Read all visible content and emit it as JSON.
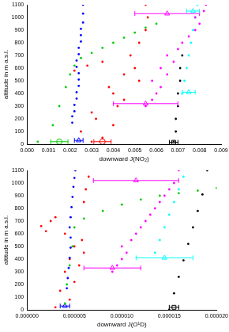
{
  "chart_data": [
    {
      "type": "scatter",
      "x_label": "downward J(NO₂)",
      "y_label": "altitude in m a.s.l.",
      "xlim": [
        0,
        0.009
      ],
      "ylim": [
        0,
        1100
      ],
      "grid": false,
      "xticks": [
        {
          "value": 0,
          "label": "0.000"
        },
        {
          "value": 0.001,
          "label": "0.001"
        },
        {
          "value": 0.002,
          "label": "0.002"
        },
        {
          "value": 0.003,
          "label": "0.003"
        },
        {
          "value": 0.004,
          "label": "0.004"
        },
        {
          "value": 0.005,
          "label": "0.005"
        },
        {
          "value": 0.006,
          "label": "0.006"
        },
        {
          "value": 0.007,
          "label": "0.007"
        },
        {
          "value": 0.008,
          "label": "0.008"
        },
        {
          "value": 0.009,
          "label": "0.009"
        }
      ],
      "yticks": [
        0,
        100,
        200,
        300,
        400,
        500,
        600,
        700,
        800,
        900,
        1000,
        1100
      ],
      "series": [
        {
          "color": "#0000ff",
          "marker": "dot",
          "x": [
            0.0021,
            0.0021,
            0.0022,
            0.0022,
            0.0023,
            0.0023,
            0.0024,
            0.0024,
            0.0024,
            0.0023,
            0.0023,
            0.0024,
            0.0024,
            0.0025,
            0.0025,
            0.0025,
            0.0026,
            0.0026,
            0.0026
          ],
          "y": [
            170,
            220,
            260,
            310,
            360,
            410,
            460,
            510,
            560,
            610,
            660,
            710,
            760,
            810,
            860,
            910,
            960,
            1030,
            1100
          ]
        },
        {
          "color": "#ff0000",
          "marker": "dot",
          "x": [
            0.003,
            0.0035,
            0.0025,
            0.004,
            0.0032,
            0.003,
            0.0042,
            0.0045,
            0.004,
            0.0038,
            0.0052,
            0.0045,
            0.005,
            0.0022,
            0.0028,
            0.0035,
            0.0048,
            0.0052,
            0.0055,
            0.0056,
            0.0055
          ],
          "y": [
            20,
            50,
            100,
            150,
            200,
            250,
            300,
            350,
            400,
            450,
            500,
            550,
            600,
            580,
            620,
            650,
            700,
            800,
            900,
            1000,
            1100
          ]
        },
        {
          "color": "#00cc00",
          "marker": "dot",
          "x": [
            0.0005,
            0.0012,
            0.0015,
            0.0018,
            0.002,
            0.0022,
            0.0025,
            0.003,
            0.0035,
            0.004,
            0.0045,
            0.005,
            0.0055,
            0.006
          ],
          "y": [
            20,
            150,
            300,
            450,
            550,
            620,
            680,
            720,
            760,
            800,
            840,
            880,
            920,
            950
          ]
        },
        {
          "color": "#ff00ff",
          "marker": "dot",
          "x": [
            0.0055,
            0.0058,
            0.006,
            0.0062,
            0.0058,
            0.0065,
            0.0062,
            0.0068,
            0.0065,
            0.007,
            0.0072,
            0.0075,
            0.0078,
            0.008,
            0.0078,
            0.0082,
            0.0083
          ],
          "y": [
            300,
            350,
            400,
            450,
            500,
            550,
            600,
            650,
            700,
            750,
            800,
            850,
            900,
            950,
            1000,
            1050,
            1100
          ]
        },
        {
          "color": "#00ffff",
          "marker": "dot",
          "x": [
            0.0072,
            0.0073,
            0.0074,
            0.0075,
            0.0076,
            0.0077,
            0.0078,
            0.0079
          ],
          "y": [
            400,
            500,
            600,
            700,
            800,
            900,
            1000,
            1100
          ]
        },
        {
          "color": "#000000",
          "marker": "dot",
          "x": [
            0.0068,
            0.0069,
            0.0069,
            0.007,
            0.007,
            0.0071,
            0.0071,
            0.0072
          ],
          "y": [
            20,
            100,
            200,
            300,
            400,
            500,
            600,
            700
          ]
        },
        {
          "color": "#ff00ff",
          "marker": "open triangle",
          "x": [
            0.0065,
            0.0055
          ],
          "y": [
            1030,
            320
          ],
          "xerr": [
            0.0015,
            0.0015
          ]
        },
        {
          "color": "#00ffff",
          "marker": "open triangle",
          "x": [
            0.0075,
            0.0077
          ],
          "y": [
            410,
            1050
          ],
          "xerr": [
            0.0003,
            0.0003
          ]
        },
        {
          "color": "#0000ff",
          "marker": "open triangle",
          "x": [
            0.0024
          ],
          "y": [
            30
          ],
          "xerr": [
            0.0002
          ]
        },
        {
          "color": "#ff0000",
          "marker": "open circle",
          "x": [
            0.0035
          ],
          "y": [
            20
          ],
          "xerr": [
            0.0004
          ]
        },
        {
          "color": "#00cc00",
          "marker": "open circle",
          "x": [
            0.0015
          ],
          "y": [
            20
          ],
          "xerr": [
            0.0004
          ]
        },
        {
          "color": "#000000",
          "marker": "open rect",
          "x": [
            0.0068
          ],
          "y": [
            15
          ],
          "xerr": [
            0.0002
          ]
        }
      ]
    },
    {
      "type": "scatter",
      "x_label": "downward J(O¹D)",
      "y_label": "altitude in m a.s.l.",
      "xlim": [
        0,
        2e-05
      ],
      "ylim": [
        0,
        1100
      ],
      "grid": false,
      "xticks": [
        {
          "value": 0,
          "label": "0.000000"
        },
        {
          "value": 5e-06,
          "label": "0.000005"
        },
        {
          "value": 1e-05,
          "label": "0.000010"
        },
        {
          "value": 1.5e-05,
          "label": "0.000015"
        },
        {
          "value": 2e-05,
          "label": "0.000020"
        }
      ],
      "yticks": [
        0,
        100,
        200,
        300,
        400,
        500,
        600,
        700,
        800,
        900,
        1000,
        1100
      ],
      "series": [
        {
          "color": "#0000ff",
          "marker": "dot",
          "x": [
            4.2e-06,
            4.3e-06,
            4.4e-06,
            4.5e-06,
            4.6e-06,
            4.6e-06,
            4.5e-06,
            4.6e-06,
            4.7e-06,
            4.8e-06,
            4.9e-06,
            5e-06,
            5.1e-06
          ],
          "y": [
            170,
            250,
            330,
            410,
            490,
            570,
            650,
            730,
            810,
            890,
            970,
            1040,
            1100
          ]
        },
        {
          "color": "#ff0000",
          "marker": "dot",
          "x": [
            3e-06,
            4.5e-06,
            3.5e-06,
            5e-06,
            4e-06,
            5.5e-06,
            4.5e-06,
            6e-06,
            5e-06,
            5.8e-06,
            4e-06,
            2e-06,
            1.5e-06,
            2.5e-06,
            3e-06,
            6e-06,
            6.2e-06,
            6.5e-06
          ],
          "y": [
            20,
            80,
            150,
            220,
            300,
            350,
            400,
            450,
            500,
            550,
            600,
            620,
            660,
            700,
            730,
            850,
            950,
            1050
          ]
        },
        {
          "color": "#00cc00",
          "marker": "dot",
          "x": [
            4e-06,
            4.2e-06,
            4.5e-06,
            4.8e-06,
            5e-06,
            6e-06,
            8e-06,
            1e-05,
            1.2e-05,
            1.4e-05,
            1.6e-05,
            1.8e-05,
            2e-05
          ],
          "y": [
            50,
            200,
            350,
            500,
            650,
            720,
            780,
            830,
            870,
            900,
            920,
            940,
            960
          ]
        },
        {
          "color": "#ff00ff",
          "marker": "dot",
          "x": [
            9e-06,
            9.5e-06,
            1e-05,
            1.05e-05,
            1e-05,
            1.1e-05,
            1.15e-05,
            1.2e-05,
            1.25e-05,
            1.3e-05,
            1.35e-05,
            1.4e-05,
            1.45e-05,
            1.5e-05,
            1.55e-05,
            1.6e-05
          ],
          "y": [
            300,
            350,
            400,
            450,
            500,
            550,
            600,
            650,
            700,
            750,
            800,
            850,
            900,
            950,
            1000,
            1100
          ]
        },
        {
          "color": "#00ffff",
          "marker": "dot",
          "x": [
            1.35e-05,
            1.4e-05,
            1.45e-05,
            1.5e-05,
            1.55e-05,
            1.6e-05,
            1.65e-05
          ],
          "y": [
            450,
            550,
            650,
            750,
            850,
            950,
            1050
          ]
        },
        {
          "color": "#000000",
          "marker": "dot",
          "x": [
            1.5e-05,
            1.55e-05,
            1.6e-05,
            1.65e-05,
            1.7e-05,
            1.75e-05,
            1.8e-05,
            1.85e-05,
            1.9e-05
          ],
          "y": [
            0,
            130,
            260,
            390,
            520,
            650,
            780,
            910,
            1100
          ]
        },
        {
          "color": "#ff00ff",
          "marker": "open triangle",
          "x": [
            1.15e-05,
            9e-06
          ],
          "y": [
            1020,
            330
          ],
          "xerr": [
            4.5e-06,
            3e-06
          ]
        },
        {
          "color": "#00ffff",
          "marker": "open triangle",
          "x": [
            1.45e-05
          ],
          "y": [
            410
          ],
          "xerr": [
            3e-06
          ]
        },
        {
          "color": "#0000ff",
          "marker": "open triangle",
          "x": [
            4e-06
          ],
          "y": [
            30
          ],
          "xerr": [
            5e-07
          ]
        },
        {
          "color": "#000000",
          "marker": "open rect",
          "x": [
            1.55e-05
          ],
          "y": [
            20
          ],
          "xerr": [
            5e-07
          ]
        }
      ]
    }
  ]
}
